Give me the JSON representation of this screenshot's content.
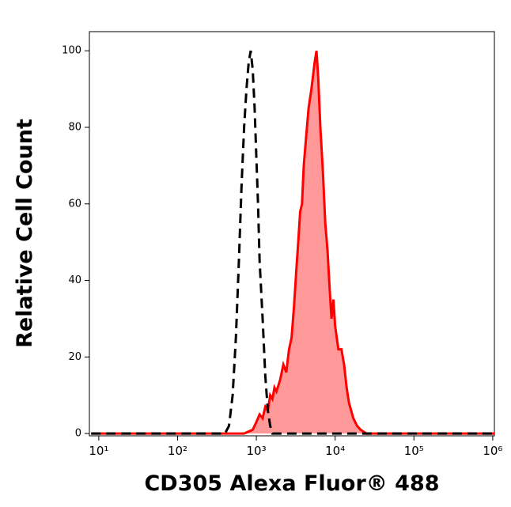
{
  "chart_data": {
    "type": "histogram-overlay",
    "x_label": "CD305 Alexa Fluor® 488",
    "y_label": "Relative Cell Count",
    "xscale": "log",
    "xlim": [
      7.6,
      1050000
    ],
    "ylim": [
      -0.6,
      105
    ],
    "xticks": [
      {
        "value": 10,
        "label": "10¹"
      },
      {
        "value": 100,
        "label": "10²"
      },
      {
        "value": 1000,
        "label": "10³"
      },
      {
        "value": 10000,
        "label": "10⁴"
      },
      {
        "value": 100000,
        "label": "10⁵"
      },
      {
        "value": 1000000,
        "label": "10⁶"
      }
    ],
    "yticks": [
      0,
      20,
      40,
      60,
      80,
      100
    ],
    "series": [
      {
        "color": "#ff0000",
        "fill": "#ff9999",
        "style": "solid",
        "x": [
          8,
          700,
          900,
          1000,
          1100,
          1200,
          1300,
          1400,
          1500,
          1600,
          1700,
          1800,
          2000,
          2200,
          2400,
          2600,
          2800,
          3000,
          3200,
          3400,
          3600,
          3800,
          4000,
          4300,
          4600,
          5000,
          5500,
          5800,
          6100,
          6500,
          7000,
          7500,
          8000,
          8500,
          9000,
          9500,
          10000,
          11000,
          12000,
          13000,
          14000,
          15000,
          17000,
          19000,
          21000,
          25000,
          1050000
        ],
        "values": [
          0,
          0,
          1,
          3,
          5,
          4,
          7,
          6,
          10,
          9,
          12,
          11,
          14,
          18,
          16,
          22,
          25,
          33,
          42,
          50,
          58,
          60,
          70,
          78,
          85,
          90,
          97,
          100,
          93,
          80,
          68,
          55,
          48,
          38,
          30,
          35,
          28,
          22,
          22,
          18,
          12,
          8,
          4,
          2,
          1,
          0,
          0
        ]
      },
      {
        "color": "#000000",
        "fill": "none",
        "style": "dashed",
        "x": [
          8,
          400,
          450,
          500,
          550,
          600,
          650,
          700,
          750,
          800,
          850,
          900,
          950,
          1000,
          1050,
          1100,
          1200,
          1300,
          1400,
          1500,
          1600,
          1050000
        ],
        "values": [
          0,
          0,
          2,
          10,
          25,
          45,
          65,
          80,
          90,
          97,
          100,
          95,
          85,
          72,
          60,
          45,
          30,
          15,
          6,
          2,
          0,
          0
        ]
      }
    ]
  }
}
